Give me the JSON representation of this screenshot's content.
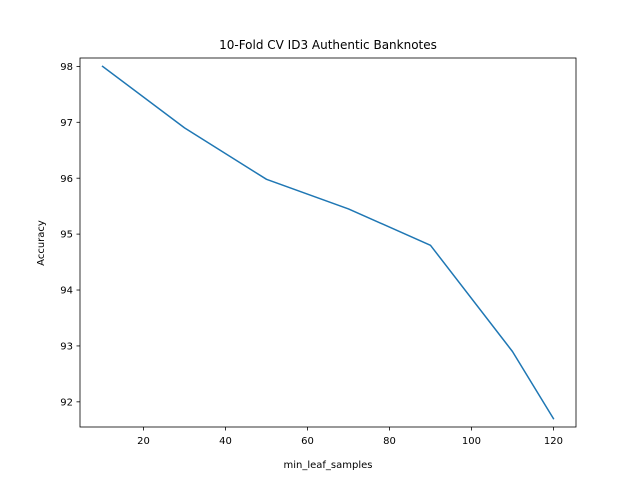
{
  "chart_data": {
    "type": "line",
    "title": "10-Fold CV  ID3 Authentic Banknotes",
    "xlabel": "min_leaf_samples",
    "ylabel": "Accuracy",
    "xlim": [
      4.5,
      125.5
    ],
    "ylim": [
      91.55,
      98.15
    ],
    "xticks": [
      20,
      40,
      60,
      80,
      100,
      120
    ],
    "yticks": [
      92,
      93,
      94,
      95,
      96,
      97,
      98
    ],
    "grid": false,
    "series": [
      {
        "color": "#1f77b4",
        "x": [
          10,
          30,
          50,
          70,
          90,
          110,
          120
        ],
        "y": [
          98.0,
          96.9,
          95.98,
          95.45,
          94.8,
          92.9,
          91.7
        ]
      }
    ]
  }
}
